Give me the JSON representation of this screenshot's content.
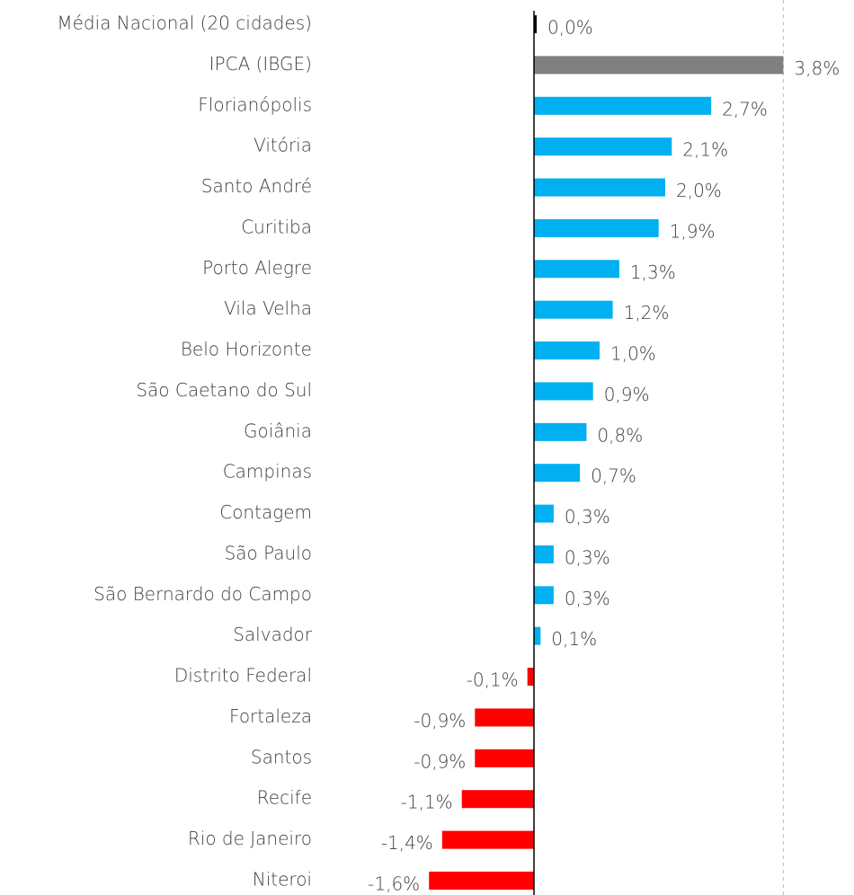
{
  "chart_data": {
    "type": "bar",
    "orientation": "horizontal",
    "categories": [
      "Média Nacional (20 cidades)",
      "IPCA (IBGE)",
      "Florianópolis",
      "Vitória",
      "Santo André",
      "Curitiba",
      "Porto Alegre",
      "Vila Velha",
      "Belo Horizonte",
      "São Caetano do Sul",
      "Goiânia",
      "Campinas",
      "Contagem",
      "São Paulo",
      "São Bernardo do Campo",
      "Salvador",
      "Distrito Federal",
      "Fortaleza",
      "Santos",
      "Recife",
      "Rio de Janeiro",
      "Niteroi"
    ],
    "values": [
      0.0,
      3.8,
      2.7,
      2.1,
      2.0,
      1.9,
      1.3,
      1.2,
      1.0,
      0.9,
      0.8,
      0.7,
      0.3,
      0.3,
      0.3,
      0.1,
      -0.1,
      -0.9,
      -0.9,
      -1.1,
      -1.4,
      -1.6
    ],
    "value_labels": [
      "0,0%",
      "3,8%",
      "2,7%",
      "2,1%",
      "2,0%",
      "1,9%",
      "1,3%",
      "1,2%",
      "1,0%",
      "0,9%",
      "0,8%",
      "0,7%",
      "0,3%",
      "0,3%",
      "0,3%",
      "0,1%",
      "-0,1%",
      "-0,9%",
      "-0,9%",
      "-1,1%",
      "-1,4%",
      "-1,6%"
    ],
    "colors": [
      "#000000",
      "#808080",
      "#00b0f0",
      "#00b0f0",
      "#00b0f0",
      "#00b0f0",
      "#00b0f0",
      "#00b0f0",
      "#00b0f0",
      "#00b0f0",
      "#00b0f0",
      "#00b0f0",
      "#00b0f0",
      "#00b0f0",
      "#00b0f0",
      "#00b0f0",
      "#ff0000",
      "#ff0000",
      "#ff0000",
      "#ff0000",
      "#ff0000",
      "#ff0000"
    ]
  }
}
